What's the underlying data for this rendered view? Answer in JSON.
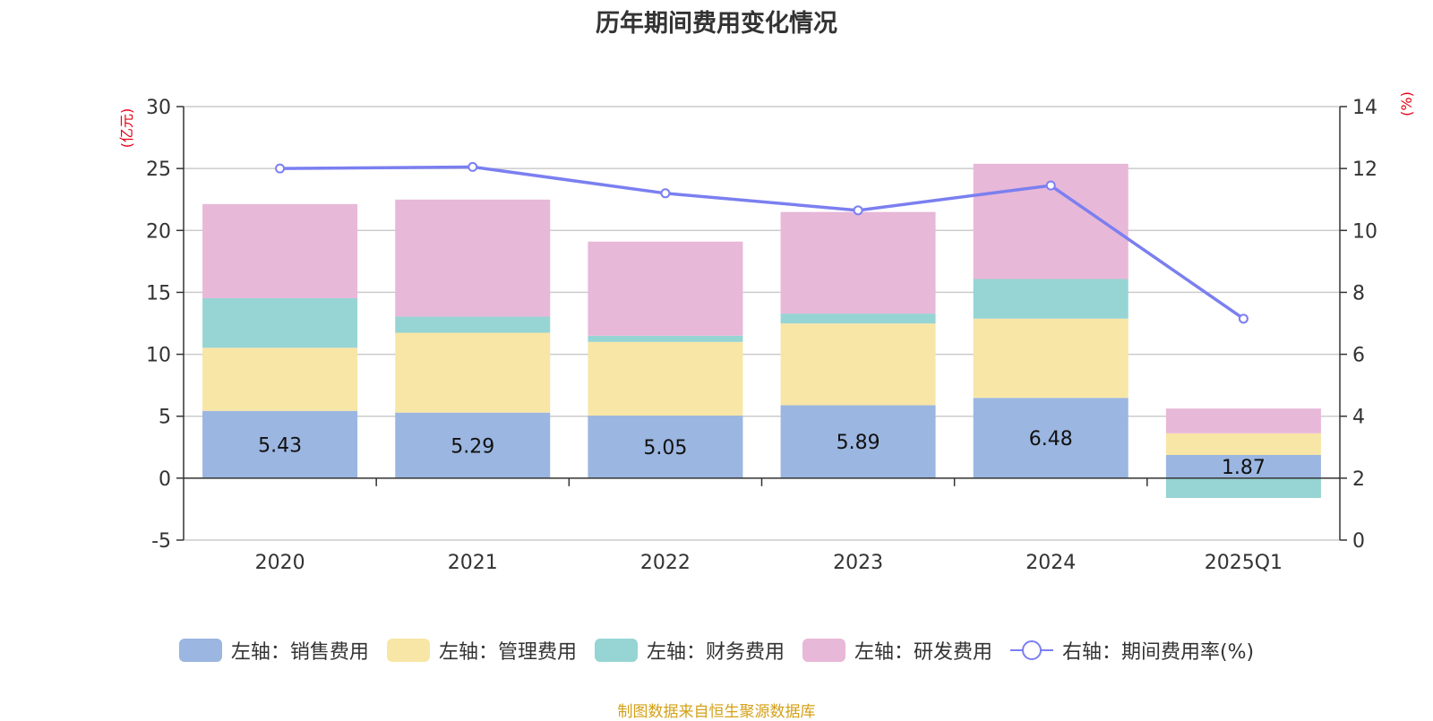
{
  "chart_data": {
    "type": "bar",
    "title": "历年期间费用变化情况",
    "categories": [
      "2020",
      "2021",
      "2022",
      "2023",
      "2024",
      "2025Q1"
    ],
    "left_axis": {
      "unit": "(亿元)",
      "ylim": [
        -5,
        30
      ],
      "ticks": [
        -5,
        0,
        5,
        10,
        15,
        20,
        25,
        30
      ]
    },
    "right_axis": {
      "unit": "(%)",
      "ylim": [
        0,
        14
      ],
      "ticks": [
        0,
        2,
        4,
        6,
        8,
        10,
        12,
        14
      ]
    },
    "grid": true,
    "stacked": true,
    "series": [
      {
        "name": "左轴：销售费用",
        "type": "bar",
        "axis": "left",
        "color": "#9bb6e0",
        "values": [
          5.43,
          5.29,
          5.05,
          5.89,
          6.48,
          1.87
        ],
        "show_labels": true
      },
      {
        "name": "左轴：管理费用",
        "type": "bar",
        "axis": "left",
        "color": "#f8e6a7",
        "values": [
          5.1,
          6.45,
          5.95,
          6.6,
          6.4,
          1.75
        ]
      },
      {
        "name": "左轴：财务费用",
        "type": "bar",
        "axis": "left",
        "color": "#97d4d4",
        "values": [
          4.0,
          1.3,
          0.5,
          0.8,
          3.2,
          -1.6
        ]
      },
      {
        "name": "左轴：研发费用",
        "type": "bar",
        "axis": "left",
        "color": "#e8b8d8",
        "values": [
          7.6,
          9.45,
          7.6,
          8.2,
          9.3,
          2.0
        ]
      },
      {
        "name": "右轴：期间费用率(%)",
        "type": "line",
        "axis": "right",
        "color": "#7b7ff0",
        "values": [
          12.0,
          12.05,
          11.2,
          10.65,
          11.45,
          7.15
        ]
      }
    ],
    "legend_position": "bottom"
  },
  "source_note": "制图数据来自恒生聚源数据库"
}
